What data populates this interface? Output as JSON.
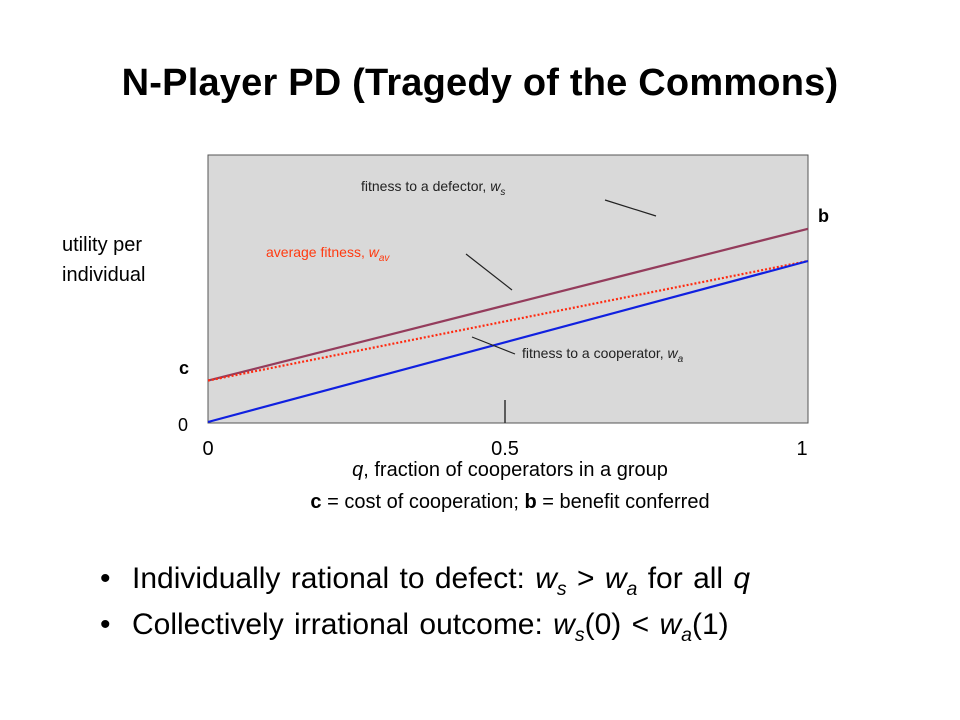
{
  "title": "N-Player PD (Tragedy of the Commons)",
  "y_axis": {
    "label_line1": "utility per",
    "label_line2": "individual",
    "tick_zero": "0",
    "tick_c": "c"
  },
  "x_axis": {
    "ticks": [
      "0",
      "0.5",
      "1"
    ],
    "label_var": "q",
    "label_rest": ", fraction of cooperators in a group"
  },
  "caption": {
    "c": "c",
    "c_text": " = cost of cooperation; ",
    "b": "b",
    "b_text": " = benefit conferred"
  },
  "end_label_b": "b",
  "chart_data": {
    "type": "line",
    "xlim": [
      0,
      1
    ],
    "series": [
      {
        "name": "fitness to a defector",
        "symbol": "w",
        "sub": "s",
        "color": "#943c5c",
        "style": "solid",
        "points": [
          [
            0,
            0.9
          ],
          [
            1,
            4.2
          ]
        ]
      },
      {
        "name": "average fitness",
        "symbol": "w",
        "sub": "av",
        "color": "#ff2a10",
        "style": "dotted",
        "points": [
          [
            0,
            0.9
          ],
          [
            1,
            3.5
          ]
        ]
      },
      {
        "name": "fitness to a cooperator",
        "symbol": "w",
        "sub": "a",
        "color": "#1020e0",
        "style": "solid",
        "points": [
          [
            0,
            0
          ],
          [
            1,
            3.5
          ]
        ]
      }
    ],
    "annotations": [
      {
        "text": "fitness to a defector, ",
        "symbol": "w",
        "sub": "s",
        "color": "#222222"
      },
      {
        "text": "average fitness, ",
        "symbol": "w",
        "sub": "av",
        "color": "#ff3a10"
      },
      {
        "text": "fitness to a cooperator, ",
        "symbol": "w",
        "sub": "a",
        "color": "#222222"
      }
    ]
  },
  "bullets": [
    {
      "pre": "Individually rational to defect: ",
      "w1": "w",
      "s1": "s",
      "mid": " > ",
      "w2": "w",
      "s2": "a",
      "post": " for all ",
      "q": "q"
    },
    {
      "pre": "Collectively irrational outcome: ",
      "w1": "w",
      "s1": "s",
      "arg1": "(0) < ",
      "w2": "w",
      "s2": "a",
      "arg2": "(1)"
    }
  ]
}
